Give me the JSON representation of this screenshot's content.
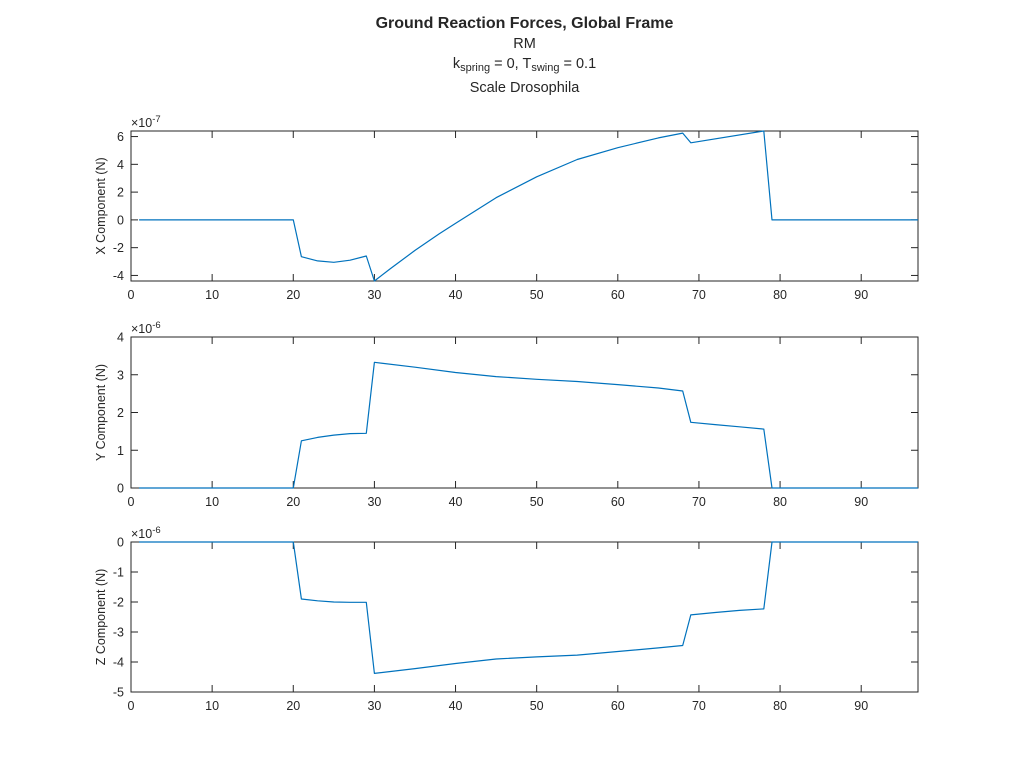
{
  "figure": {
    "title": "Ground Reaction Forces, Global Frame",
    "subtitle": "RM",
    "params": {
      "k_base": "k",
      "k_sub": "spring",
      "k_val": " = 0, ",
      "t_base": "T",
      "t_sub": "swing",
      "t_val": " = 0.1"
    },
    "scale_label": "Scale Drosophila"
  },
  "colors": {
    "line": "#0072BD",
    "axis": "#262626",
    "background": "#ffffff"
  },
  "chart_data": [
    {
      "type": "line",
      "ylabel": "X Component (N)",
      "xlabel": "",
      "exponent_base": "×10",
      "exponent_power": "-7",
      "xlim": [
        0,
        97
      ],
      "ylim": [
        -4.4,
        6.4
      ],
      "xticks": [
        0,
        10,
        20,
        30,
        40,
        50,
        60,
        70,
        80,
        90
      ],
      "yticks": [
        -4,
        -2,
        0,
        2,
        4,
        6
      ],
      "ytick_labels": [
        "-4",
        "-2",
        "0",
        "2",
        "4",
        "6"
      ],
      "x": [
        1,
        20,
        21,
        23,
        25,
        27,
        29,
        30,
        32,
        35,
        38,
        40,
        45,
        50,
        55,
        60,
        65,
        68,
        69,
        78,
        79,
        97
      ],
      "y": [
        0,
        0,
        -2.65,
        -2.95,
        -3.05,
        -2.9,
        -2.6,
        -4.4,
        -3.5,
        -2.2,
        -1.0,
        -0.25,
        1.6,
        3.1,
        4.35,
        5.2,
        5.9,
        6.25,
        5.55,
        6.4,
        0,
        0
      ]
    },
    {
      "type": "line",
      "ylabel": "Y Component (N)",
      "xlabel": "",
      "exponent_base": "×10",
      "exponent_power": "-6",
      "xlim": [
        0,
        97
      ],
      "ylim": [
        0,
        4
      ],
      "xticks": [
        0,
        10,
        20,
        30,
        40,
        50,
        60,
        70,
        80,
        90
      ],
      "yticks": [
        0,
        1,
        2,
        3,
        4
      ],
      "ytick_labels": [
        "0",
        "1",
        "2",
        "3",
        "4"
      ],
      "x": [
        1,
        20,
        21,
        23,
        25,
        27,
        29,
        30,
        35,
        40,
        45,
        50,
        55,
        60,
        65,
        68,
        69,
        72,
        75,
        78,
        79,
        97
      ],
      "y": [
        0,
        0,
        1.25,
        1.34,
        1.4,
        1.44,
        1.45,
        3.33,
        3.2,
        3.06,
        2.95,
        2.88,
        2.82,
        2.74,
        2.65,
        2.57,
        1.74,
        1.68,
        1.62,
        1.56,
        0,
        0
      ]
    },
    {
      "type": "line",
      "ylabel": "Z Component (N)",
      "xlabel": "",
      "exponent_base": "×10",
      "exponent_power": "-6",
      "xlim": [
        0,
        97
      ],
      "ylim": [
        -5,
        0
      ],
      "xticks": [
        0,
        10,
        20,
        30,
        40,
        50,
        60,
        70,
        80,
        90
      ],
      "yticks": [
        -5,
        -4,
        -3,
        -2,
        -1,
        0
      ],
      "ytick_labels": [
        "-5",
        "-4",
        "-3",
        "-2",
        "-1",
        "0"
      ],
      "x": [
        1,
        20,
        21,
        23,
        25,
        27,
        29,
        30,
        35,
        40,
        45,
        50,
        55,
        60,
        65,
        68,
        69,
        72,
        75,
        78,
        79,
        97
      ],
      "y": [
        0,
        0,
        -1.9,
        -1.96,
        -2.0,
        -2.01,
        -2.01,
        -4.38,
        -4.22,
        -4.05,
        -3.9,
        -3.83,
        -3.77,
        -3.65,
        -3.53,
        -3.45,
        -2.43,
        -2.35,
        -2.28,
        -2.23,
        0,
        0
      ]
    }
  ]
}
